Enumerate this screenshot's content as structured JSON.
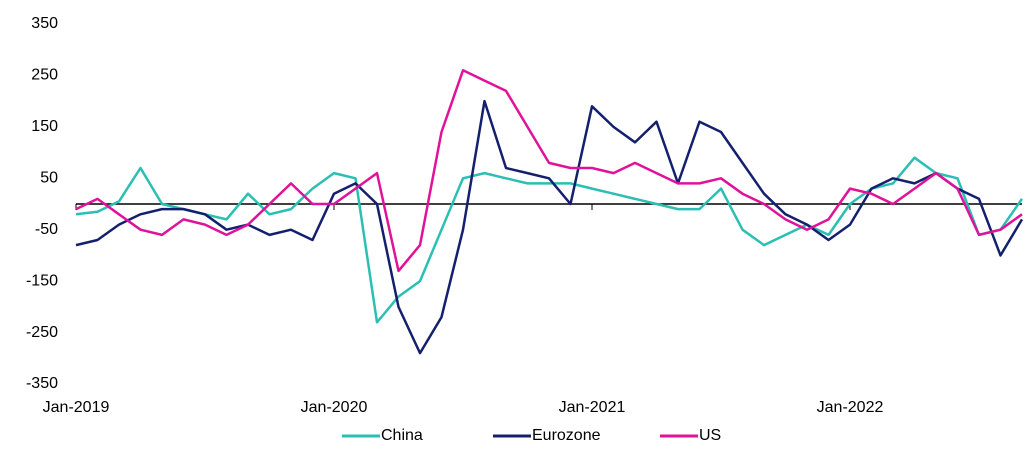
{
  "chart_data": {
    "type": "line",
    "x": [
      "2019-01",
      "2019-02",
      "2019-03",
      "2019-04",
      "2019-05",
      "2019-06",
      "2019-07",
      "2019-08",
      "2019-09",
      "2019-10",
      "2019-11",
      "2019-12",
      "2020-01",
      "2020-02",
      "2020-03",
      "2020-04",
      "2020-05",
      "2020-06",
      "2020-07",
      "2020-08",
      "2020-09",
      "2020-10",
      "2020-11",
      "2020-12",
      "2021-01",
      "2021-02",
      "2021-03",
      "2021-04",
      "2021-05",
      "2021-06",
      "2021-07",
      "2021-08",
      "2021-09",
      "2021-10",
      "2021-11",
      "2021-12",
      "2022-01",
      "2022-02",
      "2022-03",
      "2022-04",
      "2022-05",
      "2022-06",
      "2022-07",
      "2022-08",
      "2022-09"
    ],
    "series": [
      {
        "name": "China",
        "color": "#2bbfb3",
        "values": [
          -20,
          -15,
          5,
          70,
          0,
          -10,
          -20,
          -30,
          20,
          -20,
          -10,
          30,
          60,
          50,
          -230,
          -180,
          -150,
          -50,
          50,
          60,
          50,
          40,
          40,
          40,
          30,
          20,
          10,
          0,
          -10,
          -10,
          30,
          -50,
          -80,
          -60,
          -40,
          -60,
          0,
          30,
          40,
          90,
          60,
          50,
          -60,
          -50,
          10
        ]
      },
      {
        "name": "Eurozone",
        "color": "#14206e",
        "values": [
          -80,
          -70,
          -40,
          -20,
          -10,
          -10,
          -20,
          -50,
          -40,
          -60,
          -50,
          -70,
          20,
          40,
          0,
          -200,
          -290,
          -220,
          -50,
          200,
          70,
          60,
          50,
          0,
          190,
          150,
          120,
          160,
          40,
          160,
          140,
          80,
          20,
          -20,
          -40,
          -70,
          -40,
          30,
          50,
          40,
          60,
          30,
          10,
          -100,
          -30
        ]
      },
      {
        "name": "US",
        "color": "#e0129a",
        "values": [
          -10,
          10,
          -20,
          -50,
          -60,
          -30,
          -40,
          -60,
          -40,
          0,
          40,
          0,
          0,
          30,
          60,
          -130,
          -80,
          140,
          260,
          240,
          220,
          150,
          80,
          70,
          70,
          60,
          80,
          60,
          40,
          40,
          50,
          20,
          0,
          -30,
          -50,
          -30,
          30,
          20,
          0,
          30,
          60,
          30,
          -60,
          -50,
          -20
        ]
      }
    ],
    "xlim": [
      "2019-01",
      "2022-09"
    ],
    "xticks": [
      {
        "value": "2019-01",
        "label": "Jan-2019"
      },
      {
        "value": "2020-01",
        "label": "Jan-2020"
      },
      {
        "value": "2021-01",
        "label": "Jan-2021"
      },
      {
        "value": "2022-01",
        "label": "Jan-2022"
      }
    ],
    "ylim": [
      -350,
      350
    ],
    "yticks": [
      350,
      250,
      150,
      50,
      -50,
      -150,
      -250,
      -350
    ],
    "grid": false,
    "legend": "bottom"
  }
}
